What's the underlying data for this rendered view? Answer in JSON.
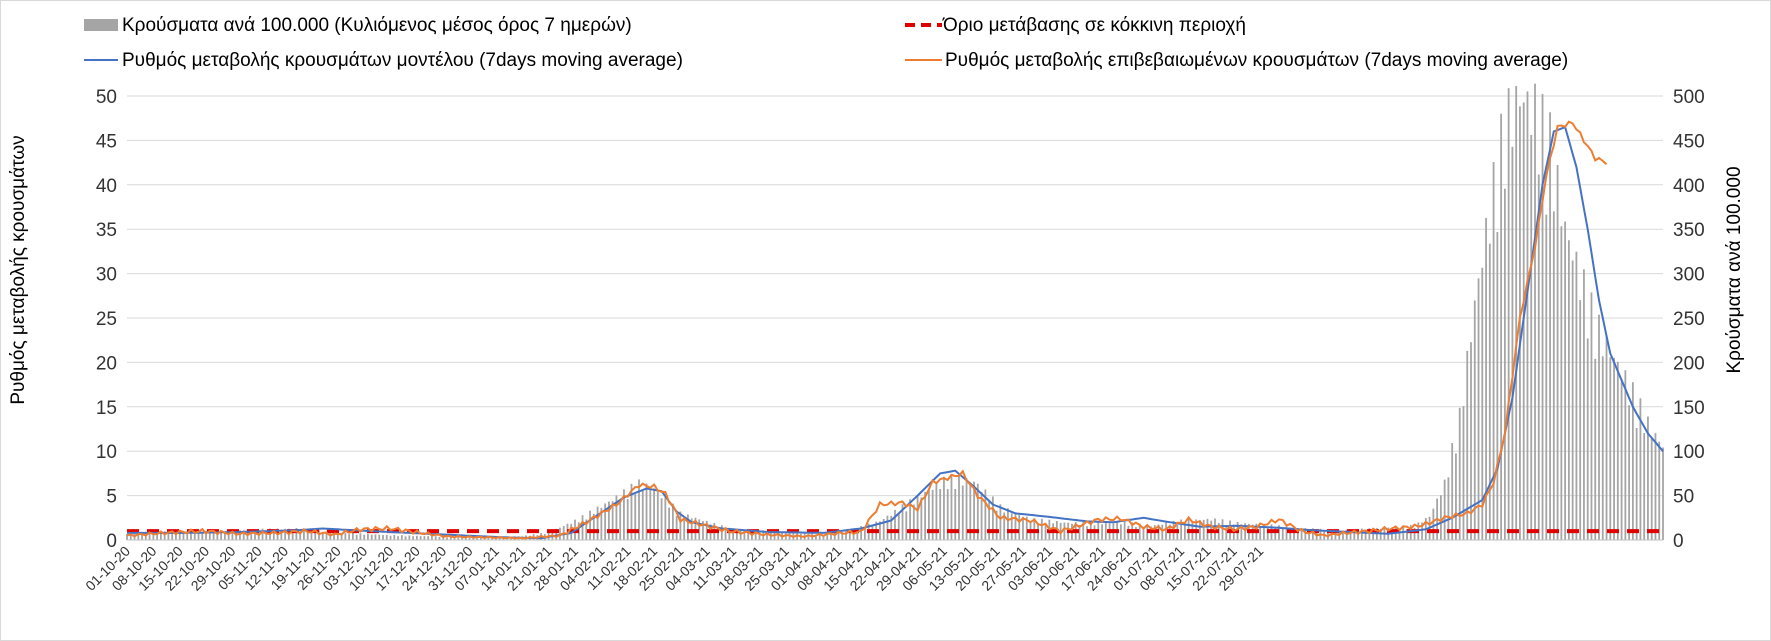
{
  "chart_data": {
    "type": "bar+line",
    "legend": [
      {
        "key": "cases",
        "label": "Κρούσματα ανά 100.000 (Κυλιόμενος μέσος όρος 7 ημερών)",
        "color": "#a5a5a5",
        "symbol": "bar"
      },
      {
        "key": "threshold",
        "label": "Όριο μετάβασης σε κόκκινη περιοχή",
        "color": "#e00000",
        "symbol": "dash"
      },
      {
        "key": "model_rate",
        "label": "Ρυθμός μεταβολής κρουσμάτων μοντέλου (7days moving average)",
        "color": "#4472c4",
        "symbol": "line"
      },
      {
        "key": "confirmed_rate",
        "label": "Ρυθμός μεταβολής επιβεβαιωμένων κρουσμάτων (7days moving average)",
        "color": "#ed7d31",
        "symbol": "line"
      }
    ],
    "y_left": {
      "label": "Ρυθμός μεταβολής κρουσμάτων",
      "min": 0,
      "max": 50,
      "ticks": [
        "0",
        "5",
        "10",
        "15",
        "20",
        "25",
        "30",
        "35",
        "40",
        "45",
        "50"
      ]
    },
    "y_right": {
      "label": "Κρούσματα ανά 100.000",
      "min": 0,
      "max": 500,
      "ticks": [
        "0",
        "50",
        "100",
        "150",
        "200",
        "250",
        "300",
        "350",
        "400",
        "450",
        "500"
      ]
    },
    "x_tick_labels": [
      "01-10-20",
      "08-10-20",
      "15-10-20",
      "22-10-20",
      "29-10-20",
      "05-11-20",
      "12-11-20",
      "19-11-20",
      "26-11-20",
      "03-12-20",
      "10-12-20",
      "17-12-20",
      "24-12-20",
      "31-12-20",
      "07-01-21",
      "14-01-21",
      "21-01-21",
      "28-01-21",
      "04-02-21",
      "11-02-21",
      "18-02-21",
      "25-02-21",
      "04-03-21",
      "11-03-21",
      "18-03-21",
      "25-03-21",
      "01-04-21",
      "08-04-21",
      "15-04-21",
      "22-04-21",
      "29-04-21",
      "06-05-21",
      "13-05-21",
      "20-05-21",
      "27-05-21",
      "03-06-21",
      "10-06-21",
      "17-06-21",
      "24-06-21",
      "01-07-21",
      "08-07-21",
      "15-07-21",
      "22-07-21",
      "29-07-21"
    ],
    "x_total_days": 306,
    "threshold_value": 1,
    "cases_keypoints": [
      [
        0,
        8
      ],
      [
        20,
        9
      ],
      [
        35,
        11
      ],
      [
        45,
        12
      ],
      [
        55,
        8
      ],
      [
        70,
        5
      ],
      [
        90,
        3
      ],
      [
        105,
        4
      ],
      [
        112,
        8
      ],
      [
        120,
        22
      ],
      [
        130,
        45
      ],
      [
        136,
        60
      ],
      [
        140,
        55
      ],
      [
        147,
        28
      ],
      [
        160,
        12
      ],
      [
        175,
        8
      ],
      [
        185,
        6
      ],
      [
        192,
        10
      ],
      [
        200,
        20
      ],
      [
        210,
        45
      ],
      [
        218,
        65
      ],
      [
        225,
        62
      ],
      [
        232,
        35
      ],
      [
        240,
        22
      ],
      [
        250,
        18
      ],
      [
        258,
        18
      ],
      [
        265,
        18
      ],
      [
        272,
        15
      ],
      [
        280,
        20
      ],
      [
        288,
        22
      ],
      [
        295,
        18
      ],
      [
        305,
        15
      ],
      [
        312,
        12
      ],
      [
        322,
        10
      ],
      [
        332,
        12
      ],
      [
        342,
        15
      ],
      [
        346,
        25
      ],
      [
        350,
        60
      ],
      [
        354,
        130
      ],
      [
        358,
        250
      ],
      [
        362,
        350
      ],
      [
        366,
        440
      ],
      [
        370,
        470
      ],
      [
        374,
        455
      ],
      [
        378,
        420
      ],
      [
        382,
        330
      ],
      [
        386,
        280
      ],
      [
        390,
        230
      ],
      [
        394,
        200
      ],
      [
        400,
        155
      ],
      [
        405,
        115
      ],
      [
        408,
        100
      ]
    ],
    "model_rate_keypoints": [
      [
        0,
        0.8
      ],
      [
        15,
        0.8
      ],
      [
        30,
        0.9
      ],
      [
        45,
        1.1
      ],
      [
        52,
        1.3
      ],
      [
        60,
        1.1
      ],
      [
        70,
        0.9
      ],
      [
        80,
        0.7
      ],
      [
        90,
        0.5
      ],
      [
        100,
        0.3
      ],
      [
        110,
        0.2
      ],
      [
        118,
        0.8
      ],
      [
        125,
        2.8
      ],
      [
        132,
        4.8
      ],
      [
        138,
        5.8
      ],
      [
        142,
        5.5
      ],
      [
        146,
        3.2
      ],
      [
        150,
        2.0
      ],
      [
        158,
        1.3
      ],
      [
        170,
        0.9
      ],
      [
        185,
        0.8
      ],
      [
        195,
        1.3
      ],
      [
        203,
        2.2
      ],
      [
        210,
        5.0
      ],
      [
        216,
        7.5
      ],
      [
        220,
        7.8
      ],
      [
        225,
        6.0
      ],
      [
        230,
        4.0
      ],
      [
        236,
        3.0
      ],
      [
        245,
        2.6
      ],
      [
        255,
        2.1
      ],
      [
        262,
        2.0
      ],
      [
        270,
        2.5
      ],
      [
        277,
        2.0
      ],
      [
        285,
        1.5
      ],
      [
        295,
        1.6
      ],
      [
        305,
        1.4
      ],
      [
        315,
        1.1
      ],
      [
        325,
        0.9
      ],
      [
        335,
        0.7
      ],
      [
        345,
        1.2
      ],
      [
        352,
        2.5
      ],
      [
        360,
        4.5
      ],
      [
        364,
        8.0
      ],
      [
        368,
        16
      ],
      [
        372,
        28
      ],
      [
        376,
        40
      ],
      [
        379,
        46
      ],
      [
        382,
        46.5
      ],
      [
        385,
        42
      ],
      [
        388,
        35
      ],
      [
        391,
        27
      ],
      [
        394,
        21
      ],
      [
        397,
        18
      ],
      [
        400,
        15
      ],
      [
        404,
        12
      ],
      [
        408,
        10
      ]
    ],
    "confirmed_rate_keypoints": [
      [
        0,
        0.5
      ],
      [
        10,
        0.8
      ],
      [
        20,
        1.0
      ],
      [
        30,
        0.7
      ],
      [
        40,
        0.8
      ],
      [
        48,
        1.0
      ],
      [
        55,
        0.6
      ],
      [
        62,
        1.2
      ],
      [
        70,
        1.3
      ],
      [
        78,
        0.8
      ],
      [
        85,
        0.4
      ],
      [
        95,
        0.3
      ],
      [
        105,
        0.2
      ],
      [
        115,
        0.5
      ],
      [
        122,
        2.0
      ],
      [
        130,
        4.0
      ],
      [
        136,
        6.2
      ],
      [
        140,
        6.0
      ],
      [
        143,
        5.2
      ],
      [
        147,
        2.3
      ],
      [
        152,
        1.8
      ],
      [
        160,
        1.0
      ],
      [
        170,
        0.6
      ],
      [
        180,
        0.4
      ],
      [
        190,
        0.8
      ],
      [
        195,
        0.9
      ],
      [
        200,
        4.0
      ],
      [
        206,
        4.2
      ],
      [
        210,
        3.5
      ],
      [
        214,
        6.5
      ],
      [
        218,
        7.0
      ],
      [
        222,
        7.5
      ],
      [
        226,
        5.0
      ],
      [
        232,
        2.5
      ],
      [
        240,
        2.2
      ],
      [
        248,
        1.0
      ],
      [
        252,
        1.5
      ],
      [
        258,
        2.3
      ],
      [
        264,
        2.4
      ],
      [
        270,
        1.5
      ],
      [
        276,
        1.2
      ],
      [
        282,
        2.3
      ],
      [
        288,
        1.5
      ],
      [
        294,
        1.2
      ],
      [
        300,
        1.5
      ],
      [
        306,
        2.3
      ],
      [
        312,
        1.0
      ],
      [
        318,
        0.5
      ],
      [
        324,
        0.8
      ],
      [
        330,
        1.0
      ],
      [
        336,
        1.3
      ],
      [
        342,
        1.5
      ],
      [
        345,
        1.8
      ],
      [
        350,
        2.5
      ],
      [
        356,
        3.0
      ],
      [
        360,
        4.0
      ],
      [
        363,
        6.5
      ],
      [
        366,
        12
      ],
      [
        370,
        25
      ],
      [
        374,
        33
      ],
      [
        377,
        41
      ],
      [
        380,
        46.5
      ],
      [
        384,
        47
      ],
      [
        387,
        45
      ],
      [
        390,
        43
      ],
      [
        393,
        42.5
      ]
    ]
  }
}
